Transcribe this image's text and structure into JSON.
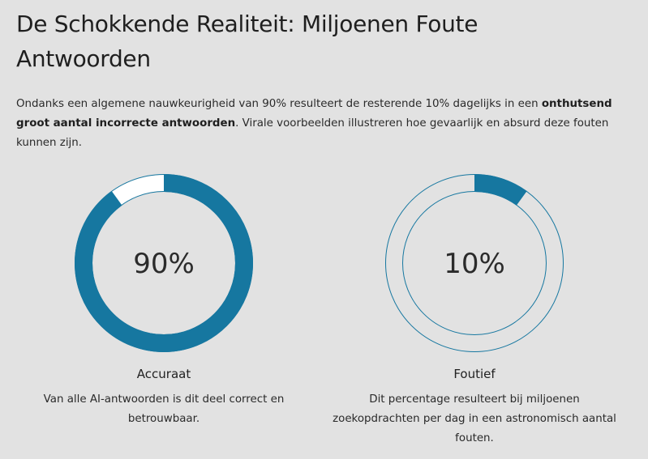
{
  "colors": {
    "accent": "#1677a0",
    "background": "#e2e2e2",
    "track": "#ffffff"
  },
  "header": {
    "title": "De Schokkende Realiteit: Miljoenen Foute Antwoorden"
  },
  "intro": {
    "text_before": "Ondanks een algemene nauwkeurigheid van 90% resulteert de resterende 10% dagelijks in een ",
    "emphasis": "onthutsend groot aantal incorrecte antwoorden",
    "text_after": ". Virale voorbeelden illustreren hoe gevaarlijk en absurd deze fouten kunnen zijn."
  },
  "stats": [
    {
      "percent_label": "90%",
      "value": 0.9,
      "label": "Accuraat",
      "description": "Van alle AI-antwoorden is dit deel correct en betrouwbaar."
    },
    {
      "percent_label": "10%",
      "value": 0.1,
      "label": "Foutief",
      "description": "Dit percentage resulteert bij miljoenen zoekopdrachten per dag in een astronomisch aantal fouten."
    }
  ]
}
